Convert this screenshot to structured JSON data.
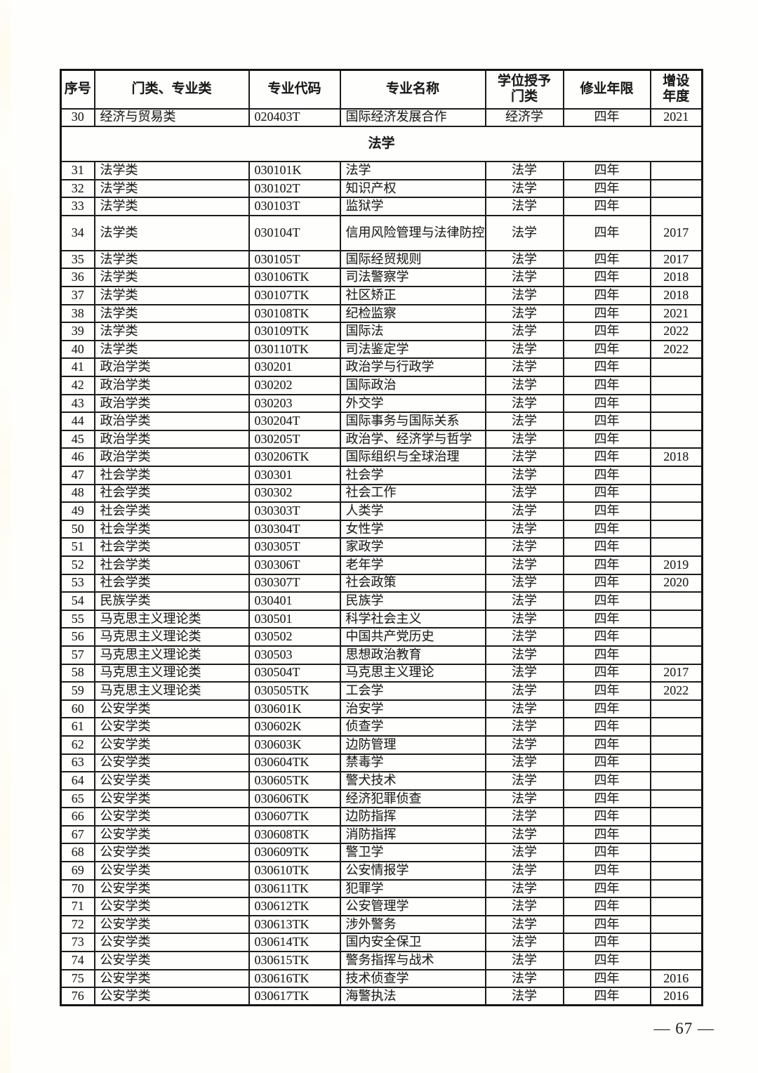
{
  "page": {
    "number_label": "— 67 —"
  },
  "table": {
    "headers": [
      "序号",
      "门类、专业类",
      "专业代码",
      "专业名称",
      "学位授予\n门类",
      "修业年限",
      "增设\n年度"
    ],
    "rows": [
      {
        "no": "30",
        "category": "经济与贸易类",
        "code": "020403T",
        "name": "国际经济发展合作",
        "degree": "经济学",
        "years": "四年",
        "added": "2021"
      },
      {
        "section": "法学"
      },
      {
        "no": "31",
        "category": "法学类",
        "code": "030101K",
        "name": "法学",
        "degree": "法学",
        "years": "四年",
        "added": ""
      },
      {
        "no": "32",
        "category": "法学类",
        "code": "030102T",
        "name": "知识产权",
        "degree": "法学",
        "years": "四年",
        "added": ""
      },
      {
        "no": "33",
        "category": "法学类",
        "code": "030103T",
        "name": "监狱学",
        "degree": "法学",
        "years": "四年",
        "added": ""
      },
      {
        "no": "34",
        "category": "法学类",
        "code": "030104T",
        "name": "信用风险管理与法律防控",
        "degree": "法学",
        "years": "四年",
        "added": "2017",
        "tall": true
      },
      {
        "no": "35",
        "category": "法学类",
        "code": "030105T",
        "name": "国际经贸规则",
        "degree": "法学",
        "years": "四年",
        "added": "2017"
      },
      {
        "no": "36",
        "category": "法学类",
        "code": "030106TK",
        "name": "司法警察学",
        "degree": "法学",
        "years": "四年",
        "added": "2018"
      },
      {
        "no": "37",
        "category": "法学类",
        "code": "030107TK",
        "name": "社区矫正",
        "degree": "法学",
        "years": "四年",
        "added": "2018"
      },
      {
        "no": "38",
        "category": "法学类",
        "code": "030108TK",
        "name": "纪检监察",
        "degree": "法学",
        "years": "四年",
        "added": "2021"
      },
      {
        "no": "39",
        "category": "法学类",
        "code": "030109TK",
        "name": "国际法",
        "degree": "法学",
        "years": "四年",
        "added": "2022"
      },
      {
        "no": "40",
        "category": "法学类",
        "code": "030110TK",
        "name": "司法鉴定学",
        "degree": "法学",
        "years": "四年",
        "added": "2022"
      },
      {
        "no": "41",
        "category": "政治学类",
        "code": "030201",
        "name": "政治学与行政学",
        "degree": "法学",
        "years": "四年",
        "added": ""
      },
      {
        "no": "42",
        "category": "政治学类",
        "code": "030202",
        "name": "国际政治",
        "degree": "法学",
        "years": "四年",
        "added": ""
      },
      {
        "no": "43",
        "category": "政治学类",
        "code": "030203",
        "name": "外交学",
        "degree": "法学",
        "years": "四年",
        "added": ""
      },
      {
        "no": "44",
        "category": "政治学类",
        "code": "030204T",
        "name": "国际事务与国际关系",
        "degree": "法学",
        "years": "四年",
        "added": ""
      },
      {
        "no": "45",
        "category": "政治学类",
        "code": "030205T",
        "name": "政治学、经济学与哲学",
        "degree": "法学",
        "years": "四年",
        "added": ""
      },
      {
        "no": "46",
        "category": "政治学类",
        "code": "030206TK",
        "name": "国际组织与全球治理",
        "degree": "法学",
        "years": "四年",
        "added": "2018"
      },
      {
        "no": "47",
        "category": "社会学类",
        "code": "030301",
        "name": "社会学",
        "degree": "法学",
        "years": "四年",
        "added": ""
      },
      {
        "no": "48",
        "category": "社会学类",
        "code": "030302",
        "name": "社会工作",
        "degree": "法学",
        "years": "四年",
        "added": ""
      },
      {
        "no": "49",
        "category": "社会学类",
        "code": "030303T",
        "name": "人类学",
        "degree": "法学",
        "years": "四年",
        "added": ""
      },
      {
        "no": "50",
        "category": "社会学类",
        "code": "030304T",
        "name": "女性学",
        "degree": "法学",
        "years": "四年",
        "added": ""
      },
      {
        "no": "51",
        "category": "社会学类",
        "code": "030305T",
        "name": "家政学",
        "degree": "法学",
        "years": "四年",
        "added": ""
      },
      {
        "no": "52",
        "category": "社会学类",
        "code": "030306T",
        "name": "老年学",
        "degree": "法学",
        "years": "四年",
        "added": "2019"
      },
      {
        "no": "53",
        "category": "社会学类",
        "code": "030307T",
        "name": "社会政策",
        "degree": "法学",
        "years": "四年",
        "added": "2020"
      },
      {
        "no": "54",
        "category": "民族学类",
        "code": "030401",
        "name": "民族学",
        "degree": "法学",
        "years": "四年",
        "added": ""
      },
      {
        "no": "55",
        "category": "马克思主义理论类",
        "code": "030501",
        "name": "科学社会主义",
        "degree": "法学",
        "years": "四年",
        "added": ""
      },
      {
        "no": "56",
        "category": "马克思主义理论类",
        "code": "030502",
        "name": "中国共产党历史",
        "degree": "法学",
        "years": "四年",
        "added": ""
      },
      {
        "no": "57",
        "category": "马克思主义理论类",
        "code": "030503",
        "name": "思想政治教育",
        "degree": "法学",
        "years": "四年",
        "added": ""
      },
      {
        "no": "58",
        "category": "马克思主义理论类",
        "code": "030504T",
        "name": "马克思主义理论",
        "degree": "法学",
        "years": "四年",
        "added": "2017"
      },
      {
        "no": "59",
        "category": "马克思主义理论类",
        "code": "030505TK",
        "name": "工会学",
        "degree": "法学",
        "years": "四年",
        "added": "2022"
      },
      {
        "no": "60",
        "category": "公安学类",
        "code": "030601K",
        "name": "治安学",
        "degree": "法学",
        "years": "四年",
        "added": ""
      },
      {
        "no": "61",
        "category": "公安学类",
        "code": "030602K",
        "name": "侦查学",
        "degree": "法学",
        "years": "四年",
        "added": ""
      },
      {
        "no": "62",
        "category": "公安学类",
        "code": "030603K",
        "name": "边防管理",
        "degree": "法学",
        "years": "四年",
        "added": ""
      },
      {
        "no": "63",
        "category": "公安学类",
        "code": "030604TK",
        "name": "禁毒学",
        "degree": "法学",
        "years": "四年",
        "added": ""
      },
      {
        "no": "64",
        "category": "公安学类",
        "code": "030605TK",
        "name": "警犬技术",
        "degree": "法学",
        "years": "四年",
        "added": ""
      },
      {
        "no": "65",
        "category": "公安学类",
        "code": "030606TK",
        "name": "经济犯罪侦查",
        "degree": "法学",
        "years": "四年",
        "added": ""
      },
      {
        "no": "66",
        "category": "公安学类",
        "code": "030607TK",
        "name": "边防指挥",
        "degree": "法学",
        "years": "四年",
        "added": ""
      },
      {
        "no": "67",
        "category": "公安学类",
        "code": "030608TK",
        "name": "消防指挥",
        "degree": "法学",
        "years": "四年",
        "added": ""
      },
      {
        "no": "68",
        "category": "公安学类",
        "code": "030609TK",
        "name": "警卫学",
        "degree": "法学",
        "years": "四年",
        "added": ""
      },
      {
        "no": "69",
        "category": "公安学类",
        "code": "030610TK",
        "name": "公安情报学",
        "degree": "法学",
        "years": "四年",
        "added": ""
      },
      {
        "no": "70",
        "category": "公安学类",
        "code": "030611TK",
        "name": "犯罪学",
        "degree": "法学",
        "years": "四年",
        "added": ""
      },
      {
        "no": "71",
        "category": "公安学类",
        "code": "030612TK",
        "name": "公安管理学",
        "degree": "法学",
        "years": "四年",
        "added": ""
      },
      {
        "no": "72",
        "category": "公安学类",
        "code": "030613TK",
        "name": "涉外警务",
        "degree": "法学",
        "years": "四年",
        "added": ""
      },
      {
        "no": "73",
        "category": "公安学类",
        "code": "030614TK",
        "name": "国内安全保卫",
        "degree": "法学",
        "years": "四年",
        "added": ""
      },
      {
        "no": "74",
        "category": "公安学类",
        "code": "030615TK",
        "name": "警务指挥与战术",
        "degree": "法学",
        "years": "四年",
        "added": ""
      },
      {
        "no": "75",
        "category": "公安学类",
        "code": "030616TK",
        "name": "技术侦查学",
        "degree": "法学",
        "years": "四年",
        "added": "2016"
      },
      {
        "no": "76",
        "category": "公安学类",
        "code": "030617TK",
        "name": "海警执法",
        "degree": "法学",
        "years": "四年",
        "added": "2016"
      }
    ]
  }
}
